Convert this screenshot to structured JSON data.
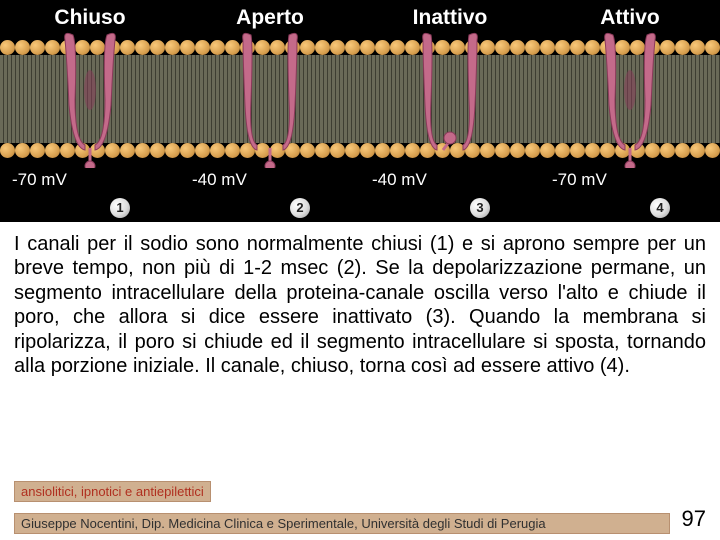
{
  "states": [
    "Chiuso",
    "Aperto",
    "Inattivo",
    "Attivo"
  ],
  "voltages": [
    "-70 mV",
    "-40 mV",
    "-40 mV",
    "-70 mV"
  ],
  "numbers": [
    "1",
    "2",
    "3",
    "4"
  ],
  "paragraph": "I canali per il sodio sono normalmente chiusi (1) e si aprono sempre per un breve tempo, non più di 1-2 msec (2). Se la depolarizzazione permane, un segmento intracel­lulare della proteina-canale oscilla verso l'alto e chiude il poro, che allora si dice essere inattivato (3). Quando la membrana si ripolarizza, il poro si chiude ed il segmento intracellulare si sposta, tornando alla porzione iniziale. Il canale, chiuso, torna così ad essere attivo (4).",
  "topic": "ansiolitici, ipnotici e antiepilettici",
  "author": "Giuseppe Nocentini, Dip. Medicina Clinica e Sperimentale, Università degli Studi di Perugia",
  "page": "97",
  "colors": {
    "channel_fill": "#c46a8a",
    "channel_stroke": "#8a3a5a",
    "ball": "#c46a8a"
  }
}
